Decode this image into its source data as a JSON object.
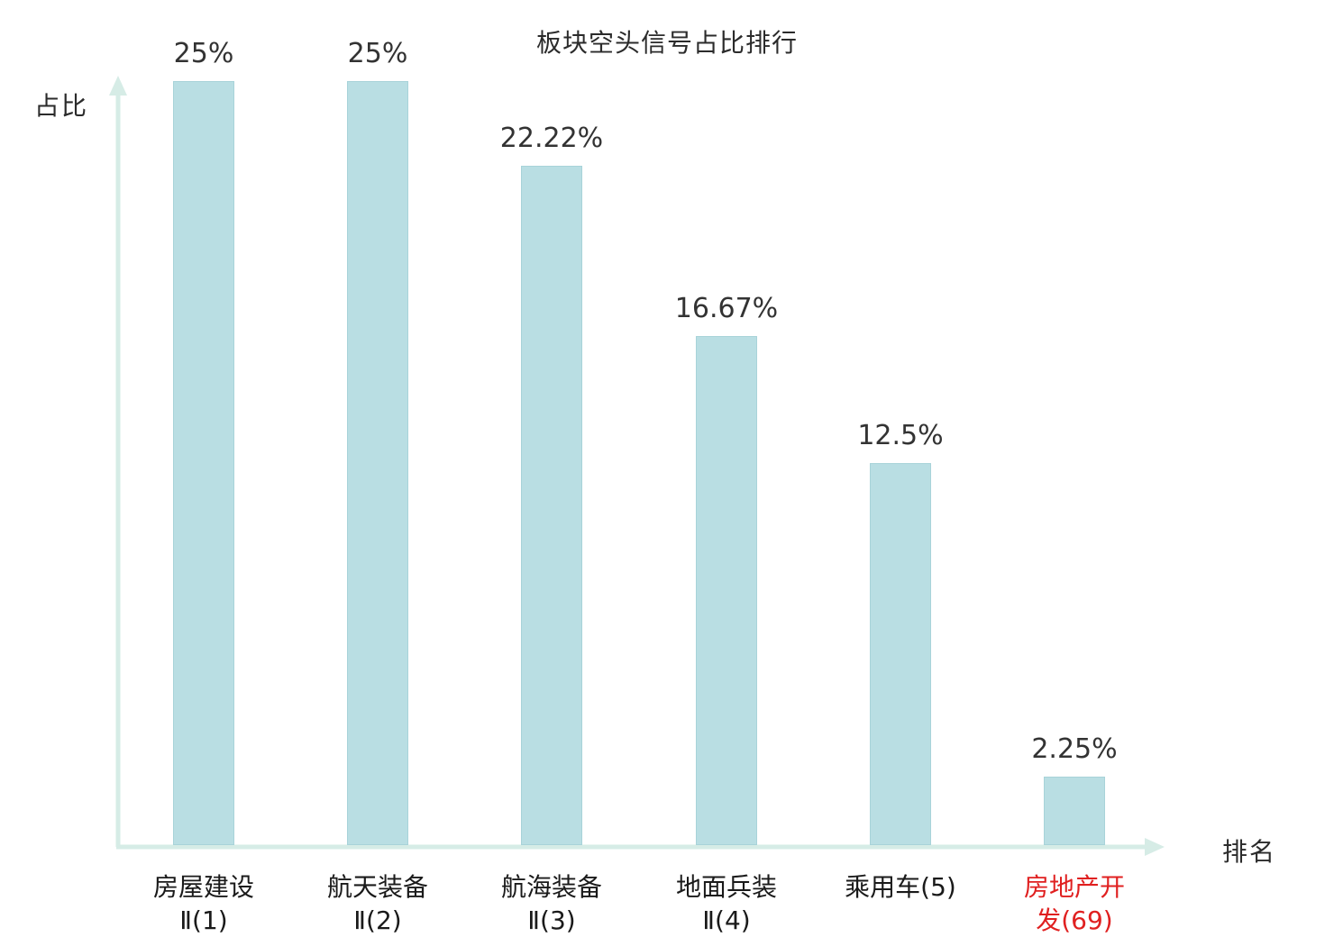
{
  "chart_data": {
    "type": "bar",
    "title": "板块空头信号占比排行",
    "xlabel": "排名",
    "ylabel": "占比",
    "ylim": [
      0,
      25
    ],
    "grid": false,
    "legend": "none",
    "bar_color": "#b9dee3",
    "axis_color": "#d6ece6",
    "highlight_color": "#e02020",
    "categories": [
      "房屋建设Ⅱ(1)",
      "航天装备Ⅱ(2)",
      "航海装备Ⅱ(3)",
      "地面兵装Ⅱ(4)",
      "乘用车(5)",
      "房地产开发(69)"
    ],
    "values": [
      25,
      25,
      22.22,
      16.67,
      12.5,
      2.25
    ],
    "bars": [
      {
        "lines": [
          "房屋建设",
          "Ⅱ(1)"
        ],
        "value": 25,
        "value_label": "25%",
        "highlight": false
      },
      {
        "lines": [
          "航天装备",
          "Ⅱ(2)"
        ],
        "value": 25,
        "value_label": "25%",
        "highlight": false
      },
      {
        "lines": [
          "航海装备",
          "Ⅱ(3)"
        ],
        "value": 22.22,
        "value_label": "22.22%",
        "highlight": false
      },
      {
        "lines": [
          "地面兵装",
          "Ⅱ(4)"
        ],
        "value": 16.67,
        "value_label": "16.67%",
        "highlight": false
      },
      {
        "lines": [
          "乘用车(5)"
        ],
        "value": 12.5,
        "value_label": "12.5%",
        "highlight": false
      },
      {
        "lines": [
          "房地产开",
          "发(69)"
        ],
        "value": 2.25,
        "value_label": "2.25%",
        "highlight": true
      }
    ]
  }
}
